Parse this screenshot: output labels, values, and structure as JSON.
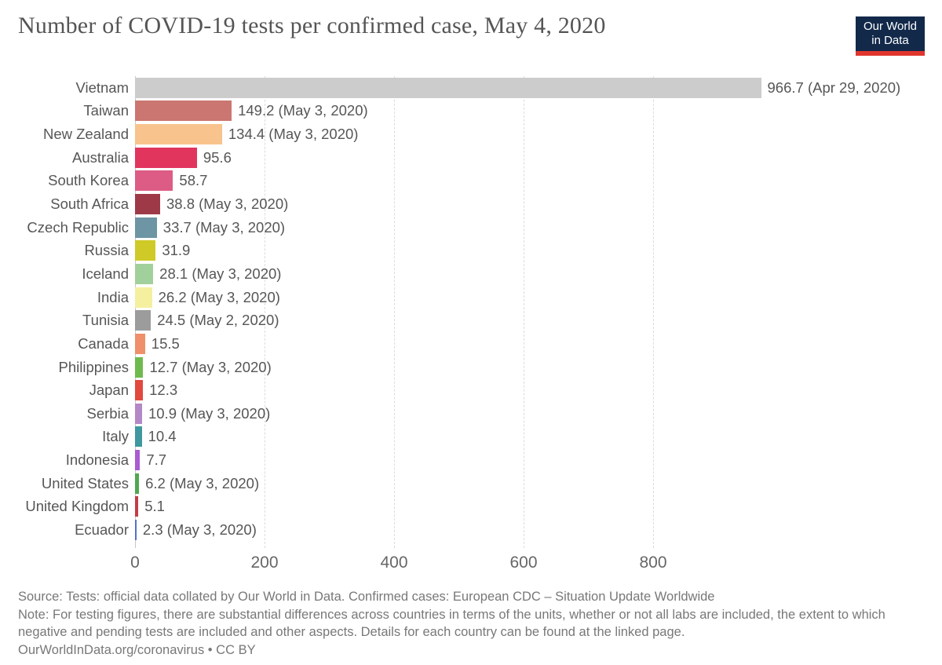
{
  "logo": {
    "line1": "Our World",
    "line2": "in Data",
    "background_color": "#12294a",
    "accent_red": "#e0362d"
  },
  "chart_data": {
    "type": "bar",
    "orientation": "horizontal",
    "title": "Number of COVID-19 tests per confirmed case, May 4, 2020",
    "xlabel": "",
    "ylabel": "",
    "xlim": [
      0,
      1000
    ],
    "x_ticks": [
      0,
      200,
      400,
      600,
      800
    ],
    "grid": "vertical-dashed",
    "bars": [
      {
        "country": "Vietnam",
        "value": 966.7,
        "label": "966.7 (Apr 29, 2020)",
        "color": "#cccccc"
      },
      {
        "country": "Taiwan",
        "value": 149.2,
        "label": "149.2 (May 3, 2020)",
        "color": "#cb7670"
      },
      {
        "country": "New Zealand",
        "value": 134.4,
        "label": "134.4 (May 3, 2020)",
        "color": "#f8c38c"
      },
      {
        "country": "Australia",
        "value": 95.6,
        "label": "95.6",
        "color": "#e1355e"
      },
      {
        "country": "South Korea",
        "value": 58.7,
        "label": "58.7",
        "color": "#dd5c85"
      },
      {
        "country": "South Africa",
        "value": 38.8,
        "label": "38.8 (May 3, 2020)",
        "color": "#9e3a47"
      },
      {
        "country": "Czech Republic",
        "value": 33.7,
        "label": "33.7 (May 3, 2020)",
        "color": "#6d95a4"
      },
      {
        "country": "Russia",
        "value": 31.9,
        "label": "31.9",
        "color": "#cfca28"
      },
      {
        "country": "Iceland",
        "value": 28.1,
        "label": "28.1 (May 3, 2020)",
        "color": "#a2d09c"
      },
      {
        "country": "India",
        "value": 26.2,
        "label": "26.2 (May 3, 2020)",
        "color": "#f4f0a0"
      },
      {
        "country": "Tunisia",
        "value": 24.5,
        "label": "24.5 (May 2, 2020)",
        "color": "#9c9c9c"
      },
      {
        "country": "Canada",
        "value": 15.5,
        "label": "15.5",
        "color": "#f08f6b"
      },
      {
        "country": "Philippines",
        "value": 12.7,
        "label": "12.7 (May 3, 2020)",
        "color": "#6fba4f"
      },
      {
        "country": "Japan",
        "value": 12.3,
        "label": "12.3",
        "color": "#e2483e"
      },
      {
        "country": "Serbia",
        "value": 10.9,
        "label": "10.9 (May 3, 2020)",
        "color": "#b487c6"
      },
      {
        "country": "Italy",
        "value": 10.4,
        "label": "10.4",
        "color": "#3f989f"
      },
      {
        "country": "Indonesia",
        "value": 7.7,
        "label": "7.7",
        "color": "#a95bd1"
      },
      {
        "country": "United States",
        "value": 6.2,
        "label": "6.2 (May 3, 2020)",
        "color": "#4fa84f"
      },
      {
        "country": "United Kingdom",
        "value": 5.1,
        "label": "5.1",
        "color": "#c43c48"
      },
      {
        "country": "Ecuador",
        "value": 2.3,
        "label": "2.3 (May 3, 2020)",
        "color": "#5571c6"
      }
    ]
  },
  "footer": {
    "source": "Source: Tests: official data collated by Our World in Data. Confirmed cases: European CDC – Situation Update Worldwide",
    "note": "Note: For testing figures, there are substantial differences across countries in terms of the units, whether or not all labs are included, the extent to which negative and pending tests are included and other aspects. Details for each country can be found at the linked page.",
    "credit": "OurWorldInData.org/coronavirus • CC BY"
  }
}
